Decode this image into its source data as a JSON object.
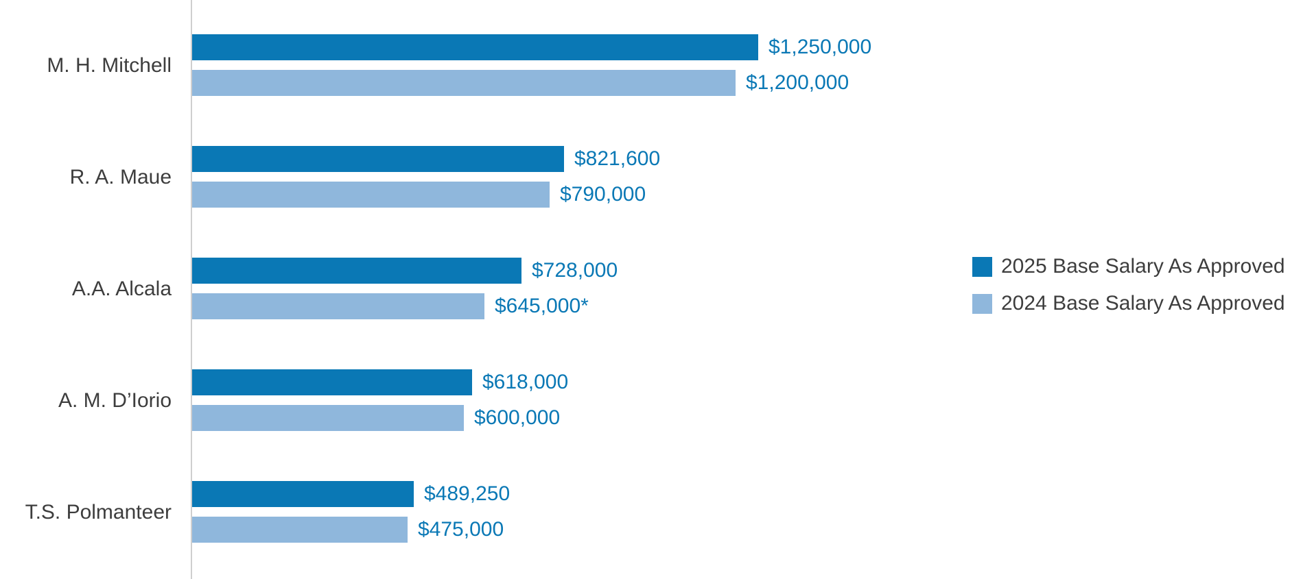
{
  "chart_data": {
    "type": "bar",
    "orientation": "horizontal",
    "title": "",
    "xlabel": "",
    "ylabel": "",
    "grid": false,
    "legend_position": "right",
    "xlim": [
      0,
      1250000
    ],
    "categories": [
      "M. H. Mitchell",
      "R. A. Maue",
      "A.A. Alcala",
      "A. M. D’Iorio",
      "T.S. Polmanteer"
    ],
    "series": [
      {
        "name": "2025 Base Salary As Approved",
        "color": "#0a78b5",
        "values": [
          1250000,
          821600,
          728000,
          618000,
          489250
        ],
        "value_labels": [
          "$1,250,000",
          "$821,600",
          "$728,000",
          "$618,000",
          "$489,250"
        ]
      },
      {
        "name": "2024 Base Salary As Approved",
        "color": "#8fb7dc",
        "values": [
          1200000,
          790000,
          645000,
          600000,
          475000
        ],
        "value_labels": [
          "$1,200,000",
          "$790,000",
          "$645,000*",
          "$600,000",
          "$475,000"
        ]
      }
    ],
    "colors": {
      "value_label": "#0a78b5",
      "category_label": "#3d3d3d",
      "axis_line": "#cfcfcf"
    }
  }
}
